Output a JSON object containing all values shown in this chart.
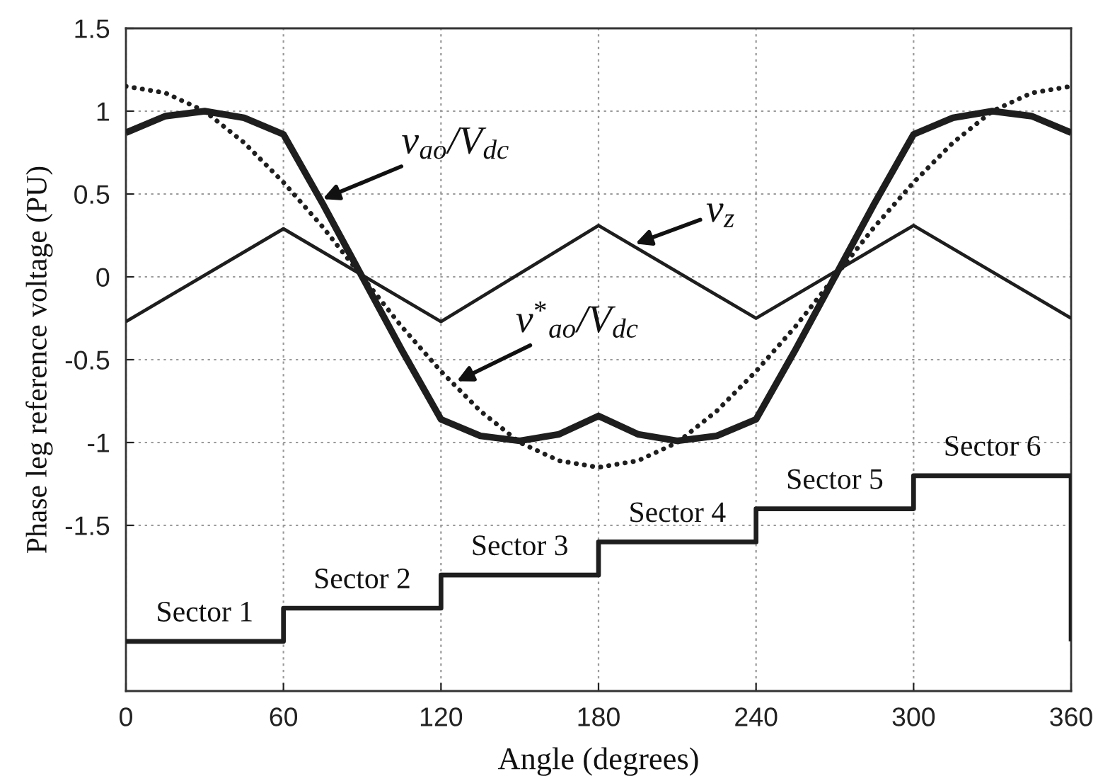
{
  "chart_data": {
    "type": "line",
    "xlabel": "Angle (degrees)",
    "ylabel": "Phase leg reference voltage (PU)",
    "xlim": [
      0,
      360
    ],
    "ylim": [
      -2.5,
      1.5
    ],
    "xticks": [
      0,
      60,
      120,
      180,
      240,
      300,
      360
    ],
    "yticks": [
      -1.5,
      -1,
      -0.5,
      0,
      0.5,
      1,
      1.5
    ],
    "grid": true,
    "series": [
      {
        "color": "#1e1e1e",
        "line_style": "solid",
        "x": [
          0,
          15,
          30,
          45,
          60,
          75,
          90,
          105,
          120,
          135,
          150,
          165,
          180,
          195,
          210,
          225,
          240,
          255,
          270,
          285,
          300,
          315,
          330,
          345,
          360
        ],
        "values": [
          0.87,
          0.97,
          1.0,
          0.96,
          0.86,
          0.44,
          0,
          -0.44,
          -0.86,
          -0.96,
          -0.99,
          -0.95,
          -0.84,
          -0.95,
          -0.99,
          -0.96,
          -0.86,
          -0.44,
          0,
          0.44,
          0.86,
          0.96,
          1.0,
          0.97,
          0.87
        ]
      },
      {
        "color": "#1e1e1e",
        "line_style": "dotted",
        "x": [
          0,
          15,
          30,
          45,
          60,
          75,
          90,
          105,
          120,
          135,
          150,
          165,
          180,
          195,
          210,
          225,
          240,
          255,
          270,
          285,
          300,
          315,
          330,
          345,
          360
        ],
        "values": [
          1.15,
          1.11,
          1.0,
          0.81,
          0.57,
          0.3,
          0,
          -0.3,
          -0.57,
          -0.81,
          -1.0,
          -1.11,
          -1.15,
          -1.11,
          -1.0,
          -0.81,
          -0.57,
          -0.3,
          0,
          0.3,
          0.57,
          0.81,
          1.0,
          1.11,
          1.15
        ]
      },
      {
        "color": "#1e1e1e",
        "line_style": "solid",
        "x": [
          0,
          60,
          120,
          180,
          240,
          300,
          360
        ],
        "values": [
          -0.27,
          0.29,
          -0.27,
          0.31,
          -0.25,
          0.31,
          -0.25
        ]
      },
      {
        "type": "step",
        "color": "#1e1e1e",
        "line_style": "solid",
        "x": [
          0,
          60,
          120,
          180,
          240,
          300,
          360,
          360
        ],
        "values": [
          -2.2,
          -2.0,
          -1.8,
          -1.6,
          -1.4,
          -1.2,
          -1.2,
          -2.2
        ]
      }
    ],
    "annotations": [
      {
        "text": "v$_{ao}$/V$_{dc}$",
        "x": 75,
        "y": 0.47
      },
      {
        "text": "v$_{z}$",
        "x": 194,
        "y": 0.2
      },
      {
        "text": "v$^{*}$$_{ao}$/V$_{dc}$",
        "x": 126,
        "y": -0.63
      },
      {
        "text": "Sector 1",
        "x": 30,
        "y": -2.2
      },
      {
        "text": "Sector 2",
        "x": 90,
        "y": -2.0
      },
      {
        "text": "Sector 3",
        "x": 150,
        "y": -1.8
      },
      {
        "text": "Sector 4",
        "x": 210,
        "y": -1.6
      },
      {
        "text": "Sector 5",
        "x": 270,
        "y": -1.4
      },
      {
        "text": "Sector 6",
        "x": 330,
        "y": -1.2
      }
    ]
  }
}
